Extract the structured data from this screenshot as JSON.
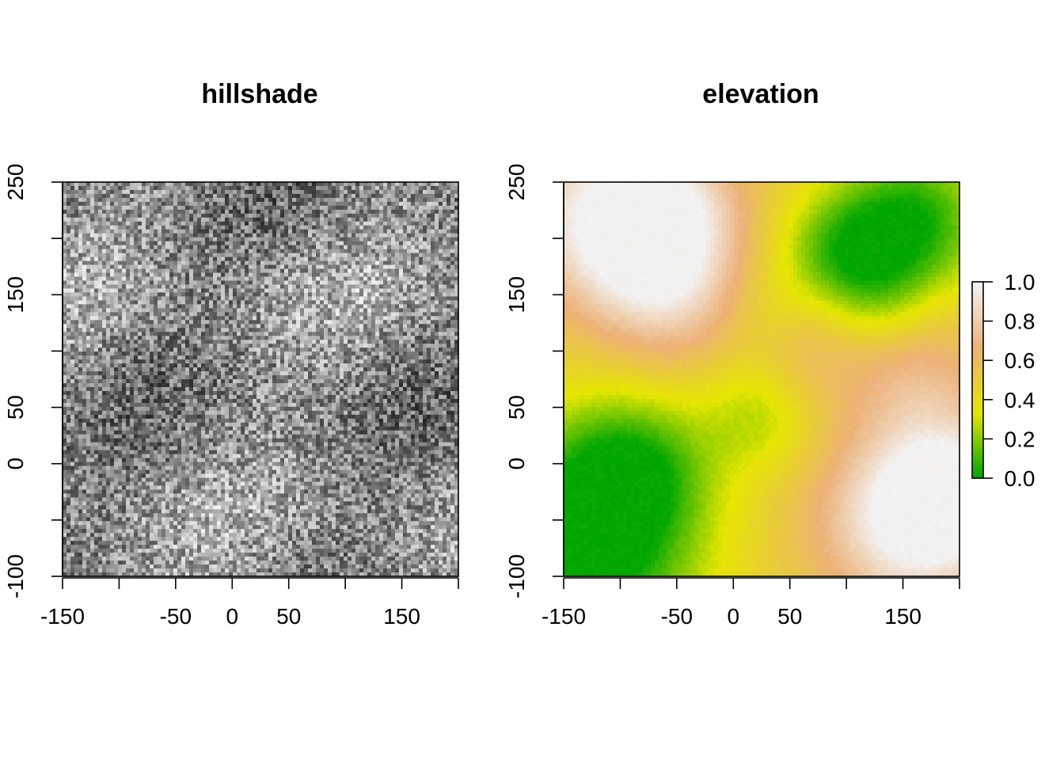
{
  "chart_data": [
    {
      "type": "heatmap",
      "title": "hillshade",
      "xlabel": "",
      "ylabel": "",
      "xlim": [
        -150,
        200
      ],
      "ylim": [
        -100,
        250
      ],
      "x_ticks": [
        -150,
        -100,
        -50,
        0,
        50,
        100,
        150,
        200
      ],
      "x_tick_labels": [
        "-150",
        "",
        "-50",
        "0",
        "50",
        "",
        "150",
        ""
      ],
      "y_ticks": [
        -100,
        -50,
        0,
        50,
        100,
        150,
        200,
        250
      ],
      "y_tick_labels": [
        "-100",
        "",
        "0",
        "50",
        "",
        "150",
        "",
        "250"
      ],
      "colormap": [
        "#000000",
        "#ffffff"
      ],
      "legend": false
    },
    {
      "type": "heatmap",
      "title": "elevation",
      "xlabel": "",
      "ylabel": "",
      "xlim": [
        -150,
        200
      ],
      "ylim": [
        -100,
        250
      ],
      "x_ticks": [
        -150,
        -100,
        -50,
        0,
        50,
        100,
        150,
        200
      ],
      "x_tick_labels": [
        "-150",
        "",
        "-50",
        "0",
        "50",
        "",
        "150",
        ""
      ],
      "y_ticks": [
        -100,
        -50,
        0,
        50,
        100,
        150,
        200,
        250
      ],
      "y_tick_labels": [
        "-100",
        "",
        "0",
        "50",
        "",
        "150",
        "",
        "250"
      ],
      "colormap": [
        "#00a600",
        "#e6e600",
        "#ecb176",
        "#f2f2f2"
      ],
      "value_range": [
        0,
        1
      ],
      "legend": "right",
      "legend_ticks": [
        0.0,
        0.2,
        0.4,
        0.6,
        0.8,
        1.0
      ],
      "legend_tick_labels": [
        "0.0",
        "0.2",
        "0.4",
        "0.6",
        "0.8",
        "1.0"
      ]
    }
  ]
}
